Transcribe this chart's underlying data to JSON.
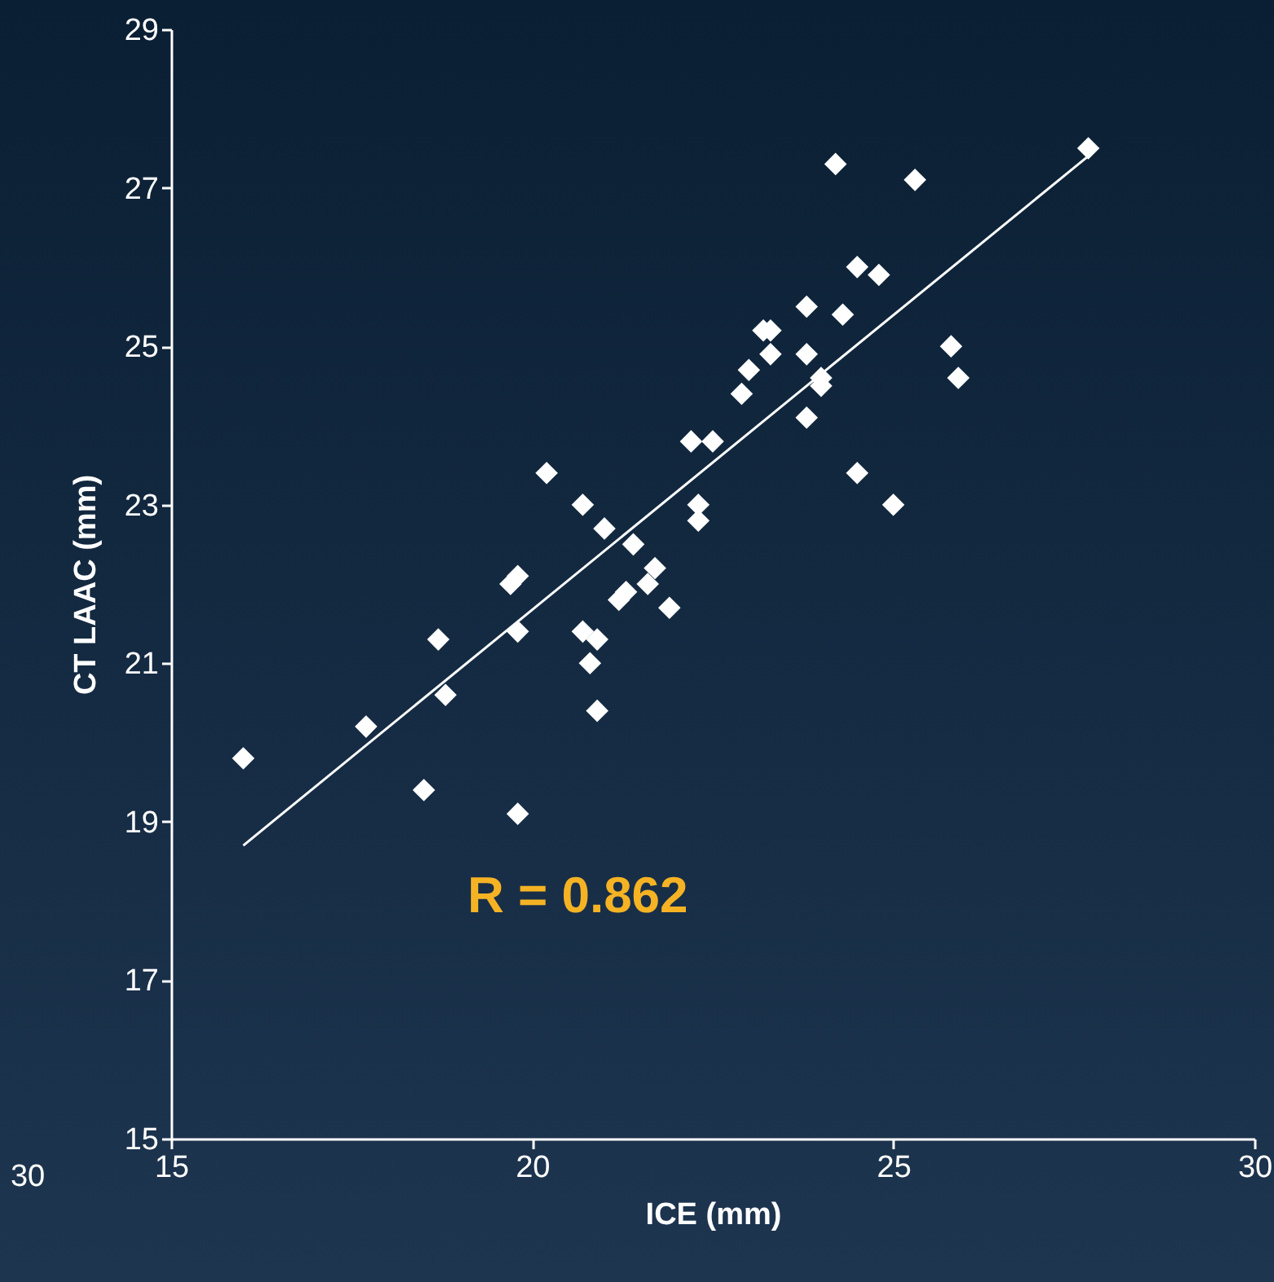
{
  "chart_data": {
    "type": "scatter",
    "xlabel": "ICE (mm)",
    "ylabel": "CT LAAC (mm)",
    "xlim": [
      15,
      30
    ],
    "xticks": [
      15,
      20,
      25,
      30
    ],
    "ylim": [
      15,
      29
    ],
    "yticks": [
      15,
      17,
      19,
      21,
      23,
      25,
      27,
      29
    ],
    "grid": false,
    "annotations": [
      "R = 0.862",
      "30"
    ],
    "series": [
      {
        "color": "#ffffff",
        "marker": "diamond",
        "x": [
          16.0,
          17.7,
          18.5,
          18.7,
          18.8,
          19.7,
          19.8,
          19.8,
          19.8,
          20.2,
          20.7,
          20.7,
          20.8,
          20.9,
          20.9,
          21.0,
          21.2,
          21.3,
          21.4,
          21.6,
          21.7,
          21.9,
          22.2,
          22.3,
          22.3,
          22.5,
          22.9,
          23.0,
          23.2,
          23.3,
          23.3,
          23.8,
          23.8,
          23.8,
          24.0,
          24.0,
          24.2,
          24.3,
          24.5,
          24.5,
          24.8,
          25.0,
          25.3,
          25.8,
          25.9,
          27.7
        ],
        "values": [
          19.8,
          20.2,
          19.4,
          21.3,
          20.6,
          22.0,
          22.1,
          21.4,
          19.1,
          23.4,
          23.0,
          21.4,
          21.0,
          21.3,
          20.4,
          22.7,
          21.8,
          21.9,
          22.5,
          22.0,
          22.2,
          21.7,
          23.8,
          23.0,
          22.8,
          23.8,
          24.4,
          24.7,
          25.2,
          25.2,
          24.9,
          25.5,
          24.9,
          24.1,
          24.6,
          24.5,
          27.3,
          25.4,
          26.0,
          23.4,
          25.9,
          23.0,
          27.1,
          25.0,
          24.6,
          27.5
        ]
      },
      {
        "type": "line",
        "color": "#ffffff",
        "x": [
          16.0,
          27.7
        ],
        "values": [
          18.7,
          27.4
        ]
      }
    ]
  }
}
